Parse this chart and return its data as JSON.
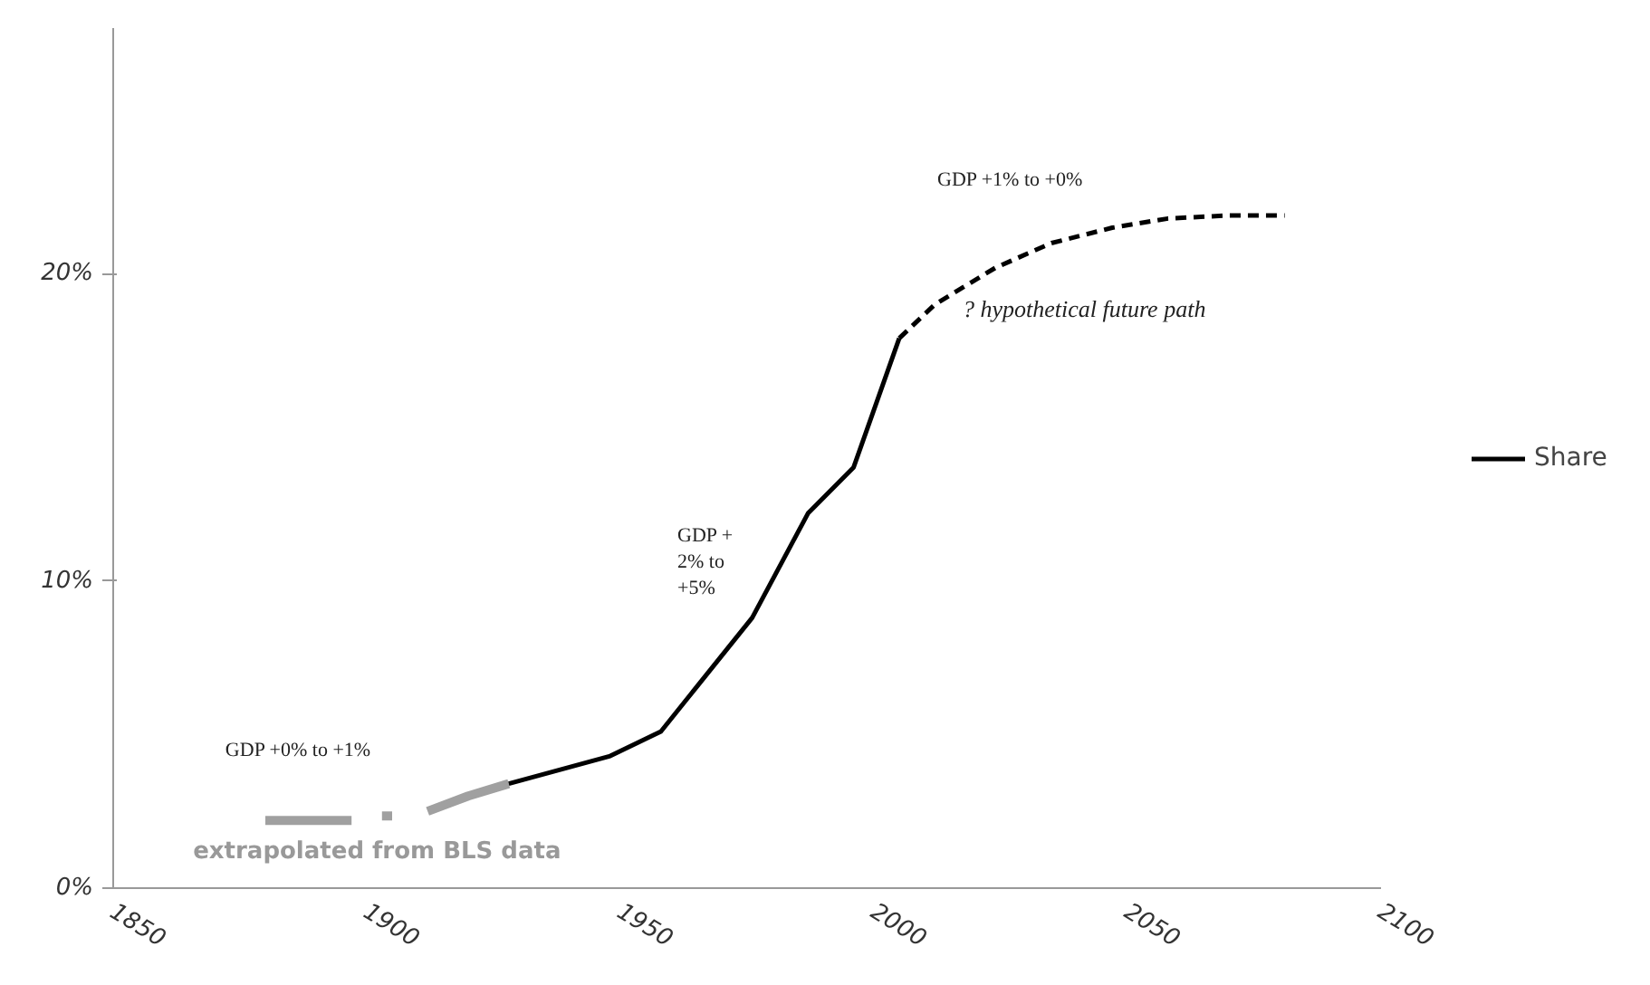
{
  "chart_data": {
    "type": "line",
    "xlim": [
      1850,
      2100
    ],
    "ylim": [
      0,
      28
    ],
    "xticks": [
      1850,
      1900,
      1950,
      2000,
      2050,
      2100
    ],
    "yticks": [
      {
        "value": 0,
        "label": "0%"
      },
      {
        "value": 10,
        "label": "10%"
      },
      {
        "value": 20,
        "label": "20%"
      }
    ],
    "grid": false,
    "legend": "right",
    "marker": "none",
    "series": [
      {
        "color": "#a0a0a0",
        "line_style": "solid",
        "x": [
          1880,
          1890,
          1897
        ],
        "values": [
          2.2,
          2.2,
          2.2
        ]
      },
      {
        "color": "#a0a0a0",
        "line_style": "solid",
        "x": [
          1903,
          1905
        ],
        "values": [
          2.35,
          2.35
        ]
      },
      {
        "color": "#a0a0a0",
        "line_style": "solid",
        "x": [
          1912,
          1920,
          1928
        ],
        "values": [
          2.5,
          3.0,
          3.4
        ]
      },
      {
        "name": "Share",
        "color": "#000000",
        "line_style": "solid",
        "x": [
          1928,
          1948,
          1958,
          1976,
          1987,
          1996,
          2005
        ],
        "values": [
          3.4,
          4.3,
          5.1,
          8.8,
          12.2,
          13.7,
          17.9
        ]
      },
      {
        "color": "#000000",
        "line_style": "dashed",
        "x": [
          2005,
          2012,
          2024,
          2035,
          2047,
          2058,
          2070,
          2081
        ],
        "values": [
          17.9,
          19.0,
          20.2,
          21.0,
          21.5,
          21.8,
          21.9,
          21.9
        ]
      }
    ],
    "annotations": [
      "GDP +0% to +1%",
      "extrapolated from BLS data",
      "GDP +\n2% to\n+5%",
      "GDP +1% to +0%",
      "? hypothetical future path"
    ]
  }
}
